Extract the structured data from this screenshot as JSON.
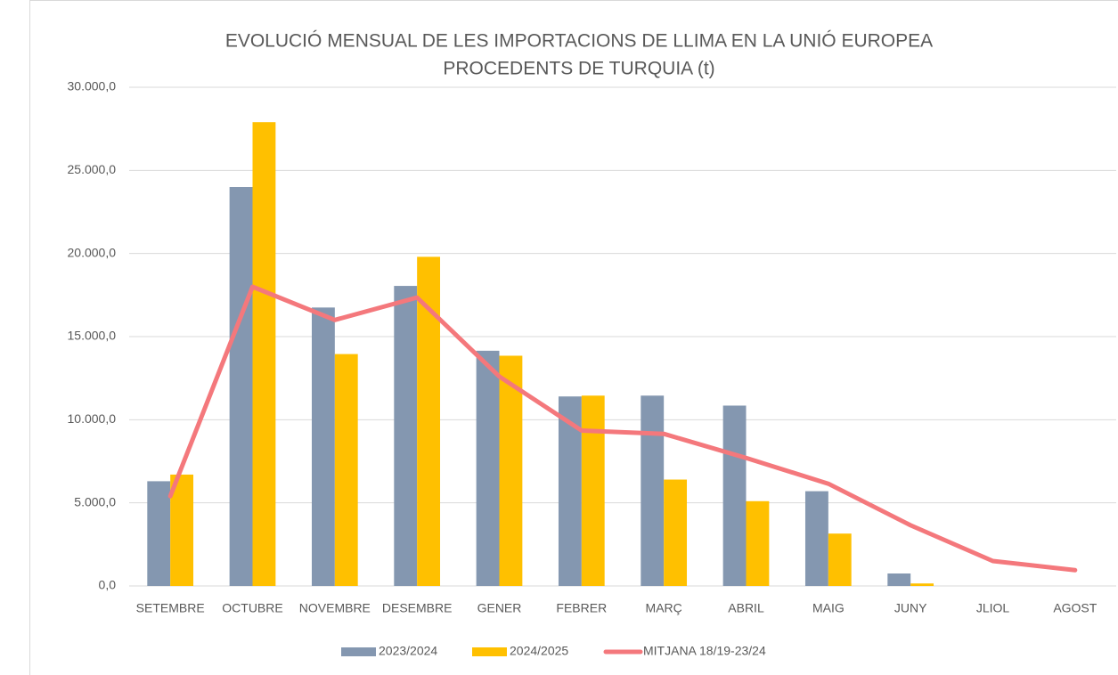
{
  "chart_data": {
    "type": "bar-line",
    "title": [
      "EVOLUCIÓ MENSUAL DE LES IMPORTACIONS DE LLIMA EN LA UNIÓ EUROPEA",
      "PROCEDENTS DE TURQUIA (t)"
    ],
    "categories": [
      "SETEMBRE",
      "OCTUBRE",
      "NOVEMBRE",
      "DESEMBRE",
      "GENER",
      "FEBRER",
      "MARÇ",
      "ABRIL",
      "MAIG",
      "JUNY",
      "JLIOL",
      "AGOST"
    ],
    "series": [
      {
        "name": "2023/2024",
        "type": "bar",
        "color": "#8497b0",
        "values": [
          6300,
          24000,
          16750,
          18050,
          14150,
          11400,
          11450,
          10850,
          5700,
          750,
          0,
          0
        ]
      },
      {
        "name": "2024/2025",
        "type": "bar",
        "color": "#ffc000",
        "values": [
          6700,
          27900,
          13950,
          19800,
          13850,
          11450,
          6400,
          5100,
          3150,
          150,
          null,
          null
        ]
      },
      {
        "name": "MITJANA 18/19-23/24",
        "type": "line",
        "color": "#f4787c",
        "values": [
          5400,
          18000,
          16000,
          17350,
          12600,
          9350,
          9150,
          7700,
          6150,
          3650,
          1500,
          950
        ]
      }
    ],
    "ylim": [
      0,
      30000
    ],
    "yticks": [
      {
        "value": 0,
        "label": "0,0"
      },
      {
        "value": 5000,
        "label": "5.000,0"
      },
      {
        "value": 10000,
        "label": "10.000,0"
      },
      {
        "value": 15000,
        "label": "15.000,0"
      },
      {
        "value": 20000,
        "label": "20.000,0"
      },
      {
        "value": 25000,
        "label": "25.000,0"
      },
      {
        "value": 30000,
        "label": "30.000,0"
      }
    ],
    "grid": true,
    "legend": "bottom"
  }
}
